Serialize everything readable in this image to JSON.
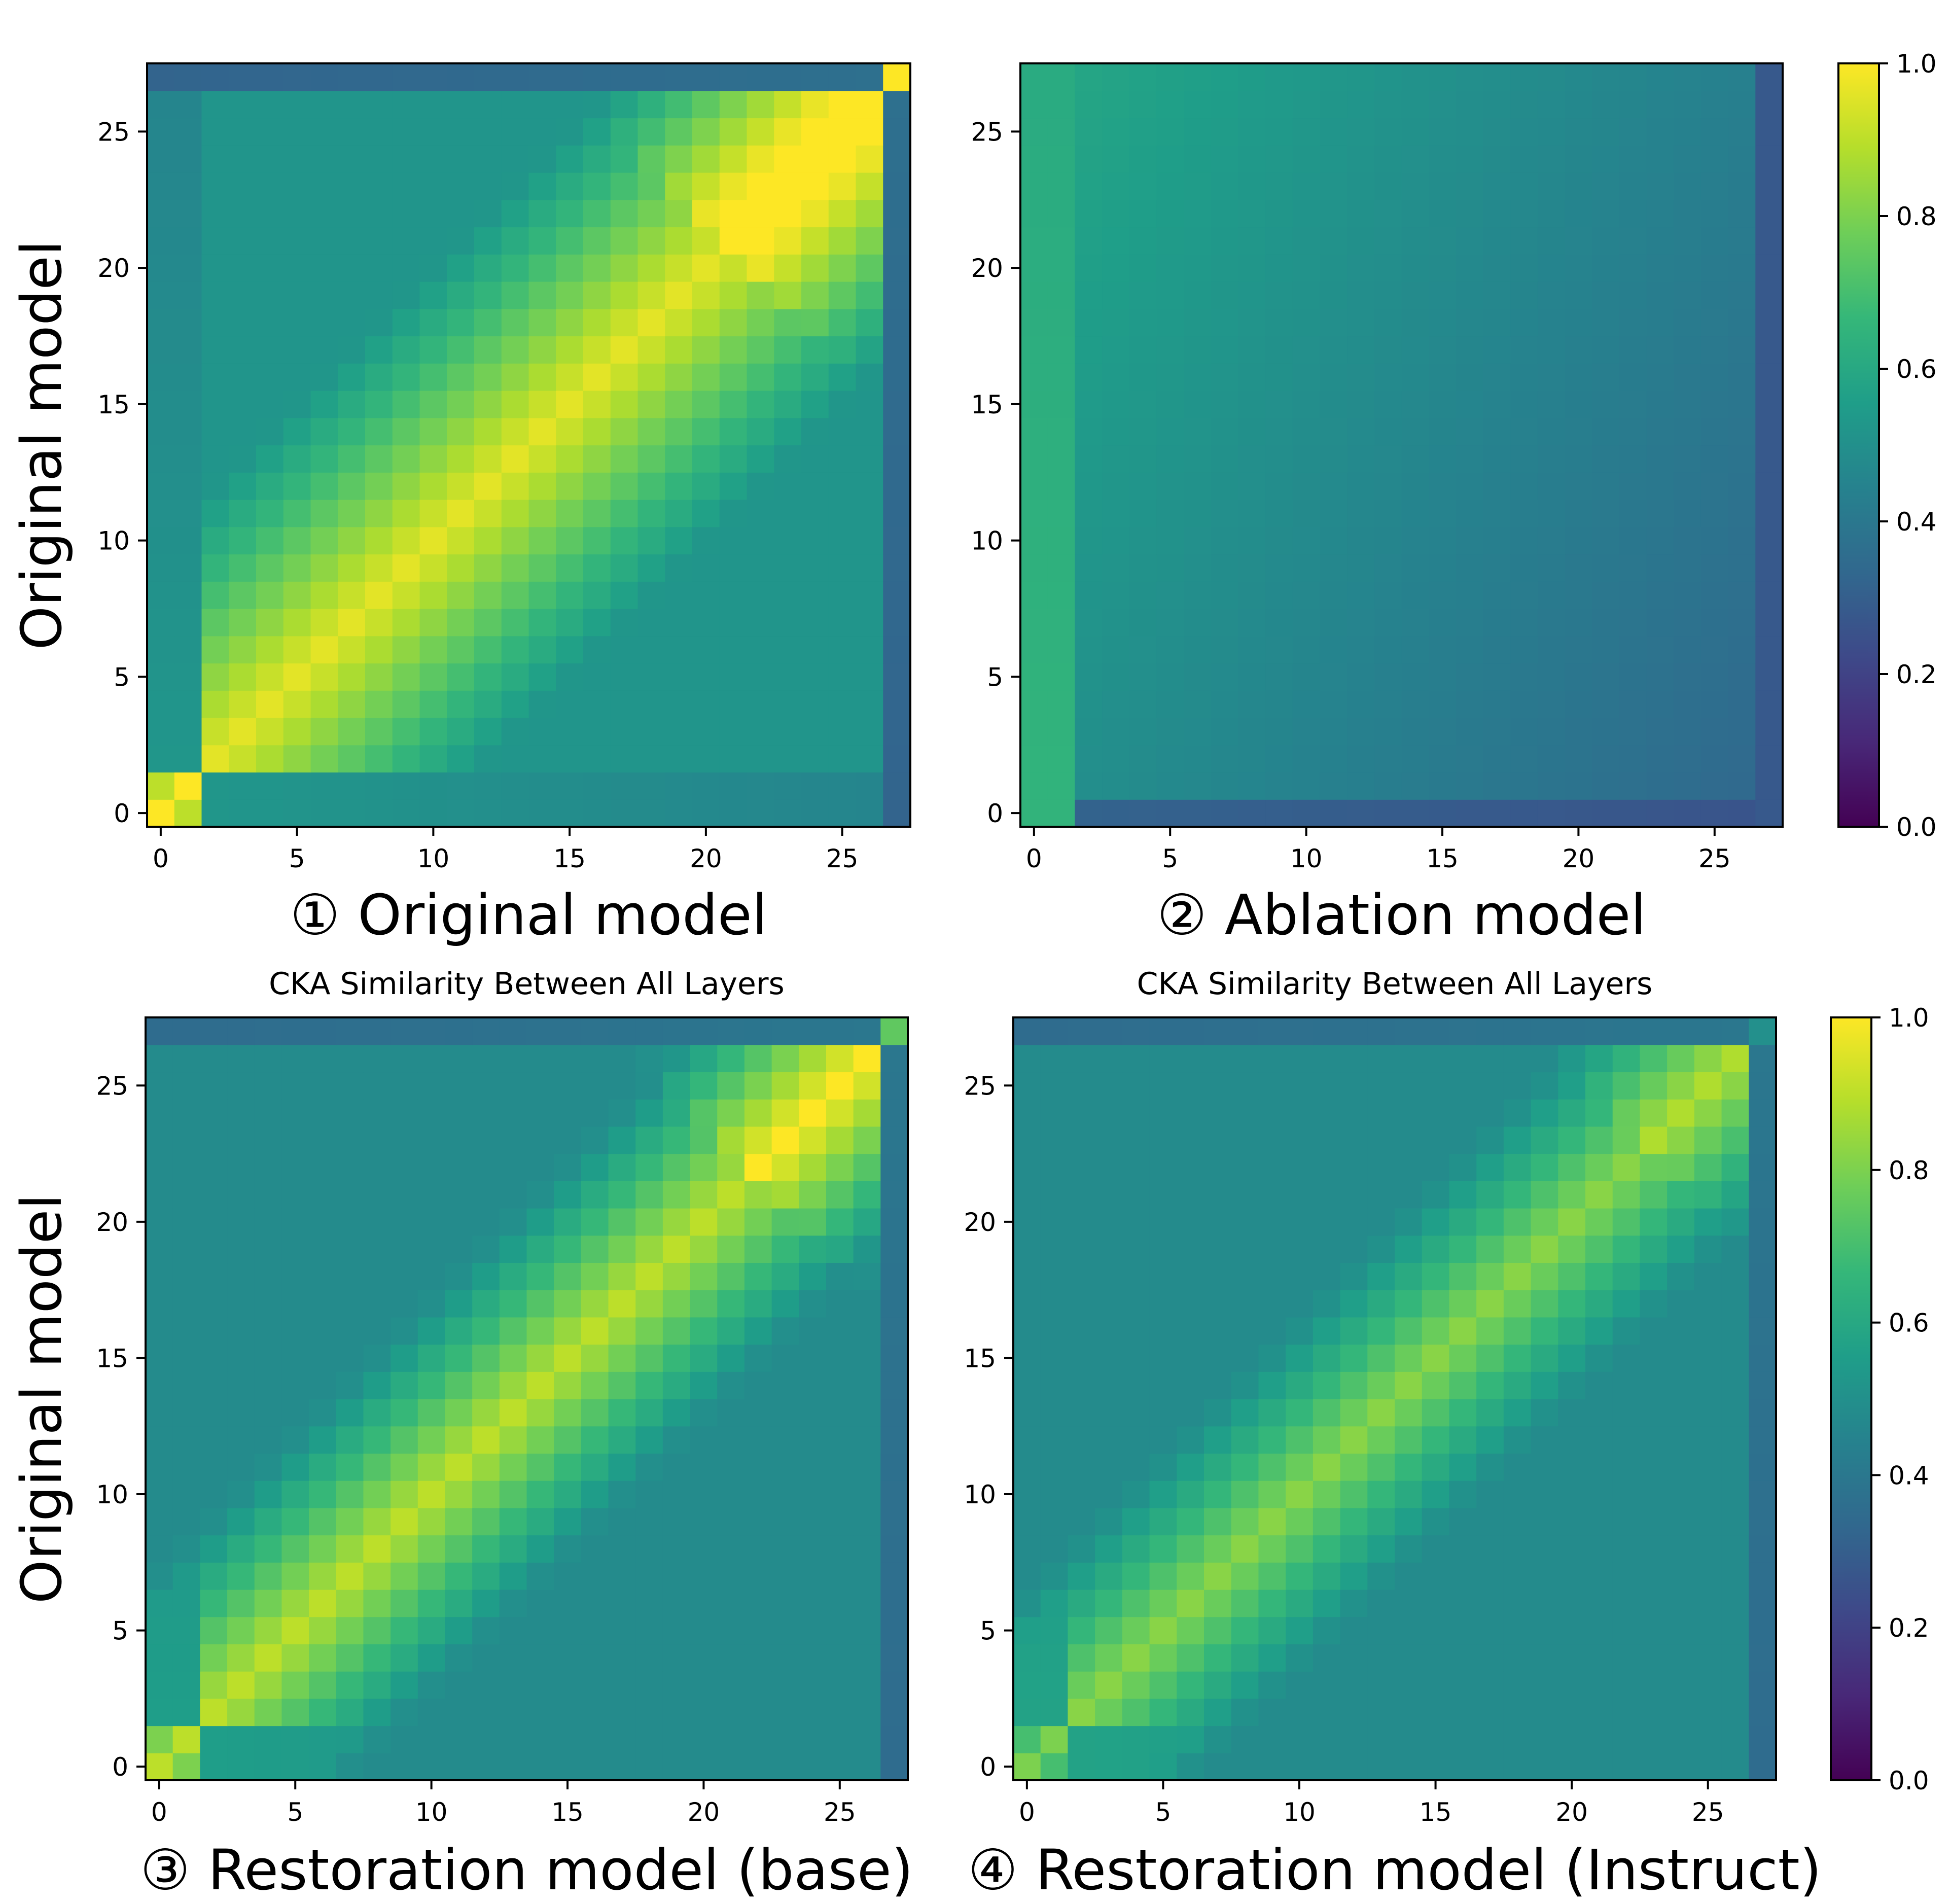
{
  "figure": {
    "colormap": "viridis",
    "colormap_stops": [
      "#440154",
      "#482878",
      "#3e4989",
      "#31688e",
      "#26828e",
      "#1f9e89",
      "#35b779",
      "#6ece58",
      "#b5de2b",
      "#fde725"
    ]
  },
  "chart_data": [
    {
      "type": "heatmap",
      "caption": "① Original model",
      "title": "",
      "xlabel": "",
      "ylabel": "Original model",
      "n": 28,
      "xlim": [
        -0.5,
        27.5
      ],
      "ylim": [
        -0.5,
        27.5
      ],
      "xticks": [
        0,
        5,
        10,
        15,
        20,
        25
      ],
      "yticks": [
        0,
        5,
        10,
        15,
        20,
        25
      ],
      "tick_labels": [
        "0",
        "5",
        "10",
        "15",
        "20",
        "25"
      ],
      "vmin": 0.0,
      "vmax": 1.0,
      "model": {
        "base": 0.52,
        "diag": 0.96,
        "decay": 0.018,
        "upper_band": 0.12,
        "upper_band_start": 21,
        "upper_band_end": 26,
        "first_layers_low": 0.45,
        "last_layer": 0.32,
        "layer27_diag": 1.0,
        "layer0_diag": 1.0
      }
    },
    {
      "type": "heatmap",
      "caption": "② Ablation model",
      "title": "",
      "xlabel": "",
      "ylabel": "",
      "n": 28,
      "xlim": [
        -0.5,
        27.5
      ],
      "ylim": [
        -0.5,
        27.5
      ],
      "xticks": [
        0,
        5,
        10,
        15,
        20,
        25
      ],
      "yticks": [
        0,
        5,
        10,
        15,
        20,
        25
      ],
      "tick_labels": [
        "0",
        "5",
        "10",
        "15",
        "20",
        "25"
      ],
      "vmin": 0.0,
      "vmax": 1.0,
      "model": {
        "base": 0.5,
        "diag": 0.5,
        "decay": 0.0,
        "col_start": 0.55,
        "col_end": 0.38,
        "row_low": 0.36,
        "row_high": 0.52,
        "first_col": 0.65,
        "last_col": 0.28,
        "bottom_row": 0.32
      }
    },
    {
      "type": "heatmap",
      "caption": "③ Restoration model (base)",
      "title": "CKA Similarity Between All Layers",
      "xlabel": "",
      "ylabel": "Original model",
      "n": 28,
      "xlim": [
        -0.5,
        27.5
      ],
      "ylim": [
        -0.5,
        27.5
      ],
      "xticks": [
        0,
        5,
        10,
        15,
        20,
        25
      ],
      "yticks": [
        0,
        5,
        10,
        15,
        20,
        25
      ],
      "tick_labels": [
        "0",
        "5",
        "10",
        "15",
        "20",
        "25"
      ],
      "vmin": 0.0,
      "vmax": 1.0,
      "model": {
        "base": 0.48,
        "diag": 0.9,
        "decay": 0.025,
        "upper_band": 0.1,
        "upper_band_start": 22,
        "upper_band_end": 26,
        "first_layers_low": 0.48,
        "last_layer": 0.35,
        "layer27_diag": 0.75,
        "layer0_diag": 0.9
      }
    },
    {
      "type": "heatmap",
      "caption": "④ Restoration model (Instruct)",
      "title": "CKA Similarity Between All Layers",
      "xlabel": "",
      "ylabel": "",
      "n": 28,
      "xlim": [
        -0.5,
        27.5
      ],
      "ylim": [
        -0.5,
        27.5
      ],
      "xticks": [
        0,
        5,
        10,
        15,
        20,
        25
      ],
      "yticks": [
        0,
        5,
        10,
        15,
        20,
        25
      ],
      "tick_labels": [
        "0",
        "5",
        "10",
        "15",
        "20",
        "25"
      ],
      "vmin": 0.0,
      "vmax": 1.0,
      "model": {
        "base": 0.48,
        "diag": 0.82,
        "decay": 0.028,
        "upper_band": 0.06,
        "upper_band_start": 23,
        "upper_band_end": 26,
        "first_layers_low": 0.5,
        "last_layer": 0.35,
        "layer27_diag": 0.5,
        "layer0_diag": 0.8
      }
    }
  ],
  "colorbars": [
    {
      "ticks": [
        "0.0",
        "0.2",
        "0.4",
        "0.6",
        "0.8",
        "1.0"
      ],
      "values": [
        0.0,
        0.2,
        0.4,
        0.6,
        0.8,
        1.0
      ]
    },
    {
      "ticks": [
        "0.0",
        "0.2",
        "0.4",
        "0.6",
        "0.8",
        "1.0"
      ],
      "values": [
        0.0,
        0.2,
        0.4,
        0.6,
        0.8,
        1.0
      ]
    }
  ]
}
